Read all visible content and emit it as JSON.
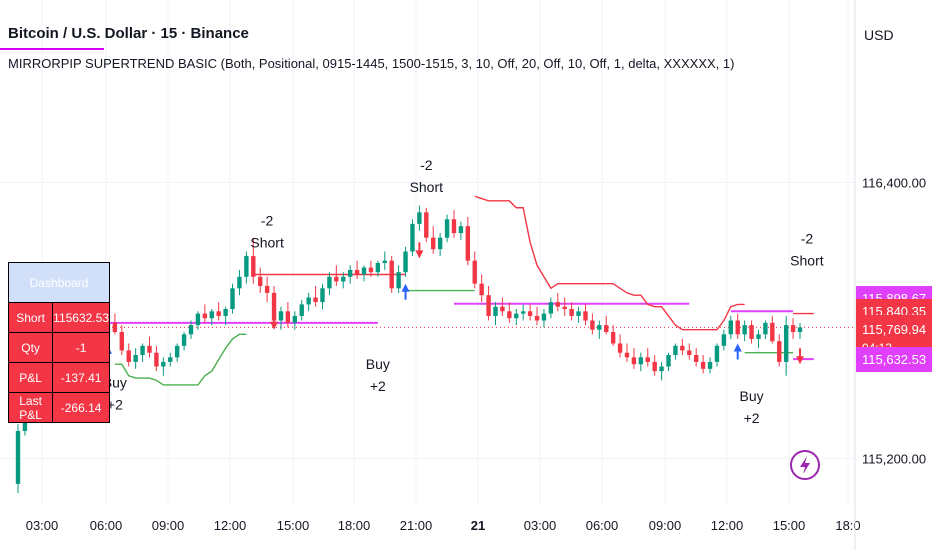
{
  "header": {
    "title": "Bitcoin / U.S. Dollar · 15 · Binance",
    "indicator": "MIRRORPIP SUPERTREND BASIC (Both, Positional, 0915-1445, 1500-1515, 3, 10, Off, 20, Off, 10, Off, 1, delta, XXXXXX, 1)",
    "currency": "USD"
  },
  "chart_data": {
    "type": "candlestick",
    "x_ticks": [
      "03:00",
      "06:00",
      "09:00",
      "12:00",
      "15:00",
      "18:00",
      "21:00",
      "21",
      "03:00",
      "06:00",
      "09:00",
      "12:00",
      "15:00",
      "18:0"
    ],
    "y_ticks": [
      "116,400.00",
      "115,200.00"
    ],
    "y_tick_values": [
      116400,
      115200
    ],
    "ylim": [
      115020,
      116780
    ],
    "candles": [
      [
        115090,
        115350,
        115050,
        115320
      ],
      [
        115320,
        115480,
        115300,
        115440
      ],
      [
        115440,
        115560,
        115400,
        115520
      ],
      [
        115520,
        115700,
        115480,
        115660
      ],
      [
        115660,
        115730,
        115580,
        115600
      ],
      [
        115600,
        115720,
        115560,
        115690
      ],
      [
        115690,
        115760,
        115640,
        115720
      ],
      [
        115720,
        115780,
        115690,
        115760
      ],
      [
        115760,
        115800,
        115700,
        115720
      ],
      [
        115720,
        115760,
        115660,
        115690
      ],
      [
        115690,
        115750,
        115650,
        115730
      ],
      [
        115730,
        115790,
        115700,
        115780
      ],
      [
        115780,
        115820,
        115720,
        115740
      ],
      [
        115740,
        115800,
        115700,
        115790
      ],
      [
        115790,
        115830,
        115740,
        115750
      ],
      [
        115750,
        115780,
        115650,
        115670
      ],
      [
        115670,
        115700,
        115600,
        115620
      ],
      [
        115620,
        115680,
        115590,
        115650
      ],
      [
        115650,
        115700,
        115620,
        115690
      ],
      [
        115690,
        115730,
        115640,
        115660
      ],
      [
        115660,
        115690,
        115580,
        115600
      ],
      [
        115600,
        115640,
        115560,
        115620
      ],
      [
        115620,
        115660,
        115600,
        115640
      ],
      [
        115640,
        115700,
        115620,
        115690
      ],
      [
        115690,
        115750,
        115670,
        115740
      ],
      [
        115740,
        115800,
        115720,
        115780
      ],
      [
        115780,
        115840,
        115760,
        115830
      ],
      [
        115830,
        115870,
        115790,
        115810
      ],
      [
        115810,
        115850,
        115780,
        115840
      ],
      [
        115840,
        115880,
        115800,
        115820
      ],
      [
        115820,
        115860,
        115780,
        115850
      ],
      [
        115850,
        115960,
        115830,
        115940
      ],
      [
        115940,
        116020,
        115910,
        115990
      ],
      [
        115990,
        116100,
        115960,
        116080
      ],
      [
        116080,
        116160,
        115960,
        115990
      ],
      [
        115990,
        116030,
        115920,
        115950
      ],
      [
        115950,
        115990,
        115880,
        115920
      ],
      [
        115920,
        115950,
        115780,
        115800
      ],
      [
        115800,
        115860,
        115760,
        115840
      ],
      [
        115840,
        115880,
        115770,
        115790
      ],
      [
        115790,
        115840,
        115760,
        115820
      ],
      [
        115820,
        115890,
        115800,
        115870
      ],
      [
        115870,
        115920,
        115840,
        115900
      ],
      [
        115900,
        115950,
        115860,
        115880
      ],
      [
        115880,
        115960,
        115850,
        115940
      ],
      [
        115940,
        116010,
        115910,
        115990
      ],
      [
        115990,
        116040,
        115950,
        115970
      ],
      [
        115970,
        116010,
        115940,
        115990
      ],
      [
        115990,
        116040,
        115960,
        116020
      ],
      [
        116020,
        116060,
        115980,
        116000
      ],
      [
        116000,
        116040,
        115970,
        116030
      ],
      [
        116030,
        116060,
        115990,
        116010
      ],
      [
        116010,
        116060,
        115990,
        116050
      ],
      [
        116050,
        116100,
        116020,
        116060
      ],
      [
        116060,
        116080,
        115920,
        115940
      ],
      [
        115940,
        116040,
        115920,
        116010
      ],
      [
        116010,
        116120,
        115990,
        116100
      ],
      [
        116100,
        116240,
        116080,
        116220
      ],
      [
        116220,
        116300,
        116190,
        116270
      ],
      [
        116270,
        116290,
        116140,
        116160
      ],
      [
        116160,
        116210,
        116090,
        116110
      ],
      [
        116110,
        116180,
        116080,
        116160
      ],
      [
        116160,
        116260,
        116140,
        116240
      ],
      [
        116240,
        116280,
        116160,
        116180
      ],
      [
        116180,
        116230,
        116150,
        116210
      ],
      [
        116210,
        116250,
        116040,
        116060
      ],
      [
        116060,
        116100,
        115940,
        115960
      ],
      [
        115960,
        116000,
        115880,
        115910
      ],
      [
        115910,
        115950,
        115800,
        115820
      ],
      [
        115820,
        115880,
        115780,
        115860
      ],
      [
        115860,
        115900,
        115820,
        115840
      ],
      [
        115840,
        115880,
        115790,
        115810
      ],
      [
        115810,
        115850,
        115780,
        115830
      ],
      [
        115830,
        115870,
        115800,
        115840
      ],
      [
        115840,
        115870,
        115800,
        115820
      ],
      [
        115820,
        115860,
        115780,
        115800
      ],
      [
        115800,
        115850,
        115770,
        115830
      ],
      [
        115830,
        115900,
        115810,
        115880
      ],
      [
        115880,
        115920,
        115840,
        115860
      ],
      [
        115860,
        115900,
        115820,
        115850
      ],
      [
        115850,
        115880,
        115800,
        115820
      ],
      [
        115820,
        115860,
        115790,
        115840
      ],
      [
        115840,
        115870,
        115780,
        115800
      ],
      [
        115800,
        115830,
        115740,
        115760
      ],
      [
        115760,
        115800,
        115720,
        115780
      ],
      [
        115780,
        115820,
        115740,
        115750
      ],
      [
        115750,
        115780,
        115690,
        115700
      ],
      [
        115700,
        115740,
        115640,
        115660
      ],
      [
        115660,
        115700,
        115620,
        115640
      ],
      [
        115640,
        115680,
        115590,
        115610
      ],
      [
        115610,
        115660,
        115580,
        115640
      ],
      [
        115640,
        115680,
        115600,
        115620
      ],
      [
        115620,
        115650,
        115560,
        115580
      ],
      [
        115580,
        115620,
        115540,
        115600
      ],
      [
        115600,
        115660,
        115580,
        115650
      ],
      [
        115650,
        115700,
        115630,
        115690
      ],
      [
        115690,
        115720,
        115650,
        115670
      ],
      [
        115670,
        115700,
        115630,
        115650
      ],
      [
        115650,
        115680,
        115600,
        115620
      ],
      [
        115620,
        115650,
        115570,
        115590
      ],
      [
        115590,
        115640,
        115570,
        115620
      ],
      [
        115620,
        115700,
        115600,
        115690
      ],
      [
        115690,
        115760,
        115670,
        115740
      ],
      [
        115740,
        115820,
        115720,
        115800
      ],
      [
        115800,
        115830,
        115720,
        115740
      ],
      [
        115740,
        115800,
        115710,
        115780
      ],
      [
        115780,
        115800,
        115700,
        115720
      ],
      [
        115720,
        115760,
        115680,
        115740
      ],
      [
        115740,
        115800,
        115720,
        115790
      ],
      [
        115790,
        115820,
        115700,
        115710
      ],
      [
        115710,
        115740,
        115600,
        115620
      ],
      [
        115620,
        115820,
        115560,
        115780
      ],
      [
        115780,
        115810,
        115720,
        115750
      ],
      [
        115750,
        115790,
        115720,
        115770
      ]
    ],
    "supertrend_lower": [
      [
        [
          115120,
          115510
        ],
        [
          115540,
          115590
        ],
        [
          115650,
          115680
        ],
        [
          115720,
          115760
        ],
        [
          115760,
          115800
        ],
        [
          115810,
          115850
        ],
        [
          115850,
          115930
        ],
        [
          115930,
          115950
        ],
        [
          115960,
          116000
        ],
        [
          116000,
          116030
        ]
      ],
      [
        [
          0,
          0
        ]
      ]
    ],
    "levels": {
      "magenta_upper": 115898.67,
      "red_mid": 115840.35,
      "last_price": 115769.94,
      "magenta_lower": 115632.53
    },
    "price_labels": [
      {
        "value": "115,898.67",
        "price": 115898.67,
        "color": "#e040fb"
      },
      {
        "value": "115,840.35",
        "price": 115840.35,
        "color": "#f23645"
      },
      {
        "value": "115,769.94",
        "price": 115769.94,
        "color": "#f23645",
        "countdown": "04:13"
      },
      {
        "value": "115,632.53",
        "price": 115632.53,
        "color": "#e040fb"
      }
    ],
    "annotations": [
      {
        "text": [
          "-2",
          "Short"
        ],
        "price": 116040
      },
      {
        "text": [
          "-2",
          "Short"
        ],
        "price": 116280
      },
      {
        "text": [
          "-2",
          "Short"
        ],
        "price": 115960
      },
      {
        "text": [
          "Buy",
          "+2"
        ],
        "price": 115720
      },
      {
        "text": [
          "Buy",
          "+2"
        ],
        "price": 115640
      },
      {
        "text": [
          "Buy",
          "+2"
        ],
        "price": 115580
      }
    ]
  },
  "dashboard": {
    "header": "Dashboard",
    "rows": [
      {
        "label": "Short",
        "value": "115632.53"
      },
      {
        "label": "Qty",
        "value": "-1"
      },
      {
        "label": "P&L",
        "value": "-137.41"
      },
      {
        "label": "Last P&L",
        "value": "-266.14"
      }
    ]
  },
  "colors": {
    "up": "#089981",
    "down": "#f23645",
    "supertrend_up": "#4caf50",
    "supertrend_down": "#f23645",
    "level_magenta": "#e040fb",
    "signal_blue": "#2962ff",
    "lightning": "#9c27b0"
  },
  "icons": {
    "replay": "lightning-icon"
  }
}
